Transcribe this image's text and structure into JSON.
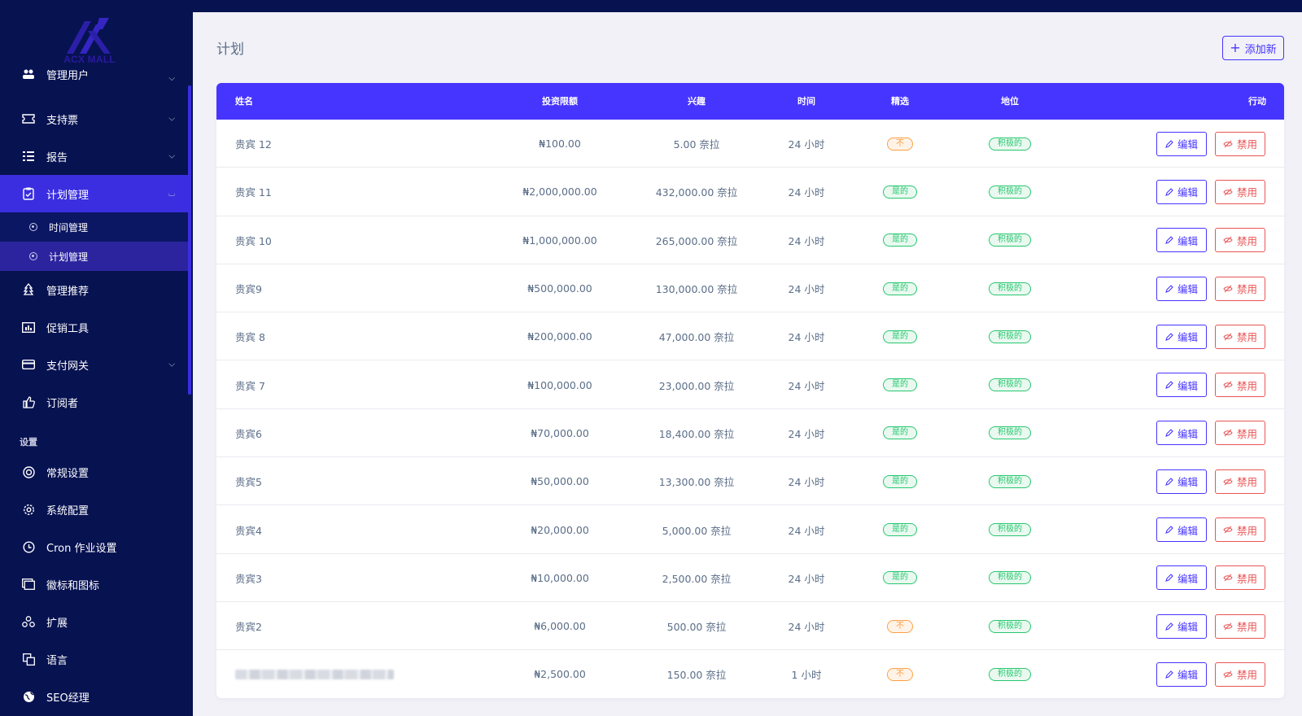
{
  "brand": {
    "name": "ACX MALL"
  },
  "sidebar": {
    "items": [
      {
        "label": "管理用户",
        "icon": "users-icon",
        "chevron": true,
        "partial": true
      },
      {
        "label": "支持票",
        "icon": "ticket-icon",
        "chevron": true
      },
      {
        "label": "报告",
        "icon": "list-icon",
        "chevron": true
      },
      {
        "label": "计划管理",
        "icon": "clipboard-check-icon",
        "chevron": true,
        "active": true,
        "open": true
      }
    ],
    "sub_items": [
      {
        "label": "时间管理",
        "active": false
      },
      {
        "label": "计划管理",
        "active": true
      }
    ],
    "items2": [
      {
        "label": "管理推荐",
        "icon": "tree-icon"
      },
      {
        "label": "促销工具",
        "icon": "chart-icon"
      },
      {
        "label": "支付网关",
        "icon": "credit-card-icon",
        "chevron": true
      },
      {
        "label": "订阅者",
        "icon": "thumbs-up-icon"
      }
    ],
    "section_title": "设置",
    "settings": [
      {
        "label": "常规设置",
        "icon": "lifebuoy-icon"
      },
      {
        "label": "系统配置",
        "icon": "gear-icon"
      },
      {
        "label": "Cron 作业设置",
        "icon": "clock-icon"
      },
      {
        "label": "徽标和图标",
        "icon": "images-icon"
      },
      {
        "label": "扩展",
        "icon": "cubes-icon"
      },
      {
        "label": "语言",
        "icon": "language-icon"
      },
      {
        "label": "SEO经理",
        "icon": "globe-icon"
      }
    ]
  },
  "page": {
    "title": "计划",
    "add_button": "添加新"
  },
  "table": {
    "headers": {
      "name": "姓名",
      "limit": "投资限额",
      "interest": "兴趣",
      "time": "时间",
      "featured": "精选",
      "status": "地位",
      "action": "行动"
    },
    "edit_label": "编辑",
    "disable_label": "禁用",
    "rows": [
      {
        "name": "贵宾 12",
        "limit": "₦100.00",
        "interest": "5.00 奈拉",
        "time": "24 小时",
        "featured": "不",
        "featured_yes": false,
        "status": "积极的"
      },
      {
        "name": "贵宾 11",
        "limit": "₦2,000,000.00",
        "interest": "432,000.00 奈拉",
        "time": "24 小时",
        "featured": "是的",
        "featured_yes": true,
        "status": "积极的"
      },
      {
        "name": "贵宾 10",
        "limit": "₦1,000,000.00",
        "interest": "265,000.00 奈拉",
        "time": "24 小时",
        "featured": "是的",
        "featured_yes": true,
        "status": "积极的"
      },
      {
        "name": "贵宾9",
        "limit": "₦500,000.00",
        "interest": "130,000.00 奈拉",
        "time": "24 小时",
        "featured": "是的",
        "featured_yes": true,
        "status": "积极的"
      },
      {
        "name": "贵宾 8",
        "limit": "₦200,000.00",
        "interest": "47,000.00 奈拉",
        "time": "24 小时",
        "featured": "是的",
        "featured_yes": true,
        "status": "积极的"
      },
      {
        "name": "贵宾 7",
        "limit": "₦100,000.00",
        "interest": "23,000.00 奈拉",
        "time": "24 小时",
        "featured": "是的",
        "featured_yes": true,
        "status": "积极的"
      },
      {
        "name": "贵宾6",
        "limit": "₦70,000.00",
        "interest": "18,400.00 奈拉",
        "time": "24 小时",
        "featured": "是的",
        "featured_yes": true,
        "status": "积极的"
      },
      {
        "name": "贵宾5",
        "limit": "₦50,000.00",
        "interest": "13,300.00 奈拉",
        "time": "24 小时",
        "featured": "是的",
        "featured_yes": true,
        "status": "积极的"
      },
      {
        "name": "贵宾4",
        "limit": "₦20,000.00",
        "interest": "5,000.00 奈拉",
        "time": "24 小时",
        "featured": "是的",
        "featured_yes": true,
        "status": "积极的"
      },
      {
        "name": "贵宾3",
        "limit": "₦10,000.00",
        "interest": "2,500.00 奈拉",
        "time": "24 小时",
        "featured": "是的",
        "featured_yes": true,
        "status": "积极的"
      },
      {
        "name": "贵宾2",
        "limit": "₦6,000.00",
        "interest": "500.00 奈拉",
        "time": "24 小时",
        "featured": "不",
        "featured_yes": false,
        "status": "积极的"
      },
      {
        "name": "",
        "name_blurred": true,
        "limit": "₦2,500.00",
        "interest": "150.00 奈拉",
        "time": "1 小时",
        "featured": "不",
        "featured_yes": false,
        "status": "积极的"
      }
    ]
  }
}
